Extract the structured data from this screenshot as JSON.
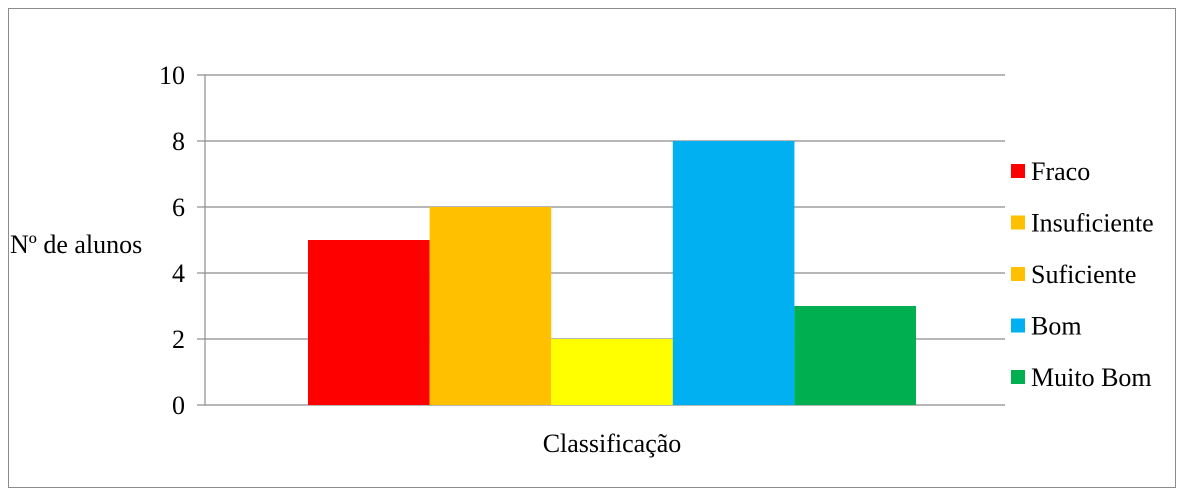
{
  "chart_data": {
    "type": "bar",
    "title": "",
    "xlabel": "Classificação",
    "ylabel": "Nº de alunos",
    "ylim": [
      0,
      10
    ],
    "yticks": [
      0,
      2,
      4,
      6,
      8,
      10
    ],
    "grid": true,
    "legend_position": "right",
    "series": [
      {
        "name": "Fraco",
        "value": 5,
        "color": "#ff0000"
      },
      {
        "name": "Insuficiente",
        "value": 6,
        "color": "#ffc000"
      },
      {
        "name": "Suficiente",
        "value": 2,
        "color": "#ffff00",
        "legend_color": "#ffc000"
      },
      {
        "name": "Bom",
        "value": 8,
        "color": "#00b0f0"
      },
      {
        "name": "Muito Bom",
        "value": 3,
        "color": "#00b050"
      }
    ]
  }
}
